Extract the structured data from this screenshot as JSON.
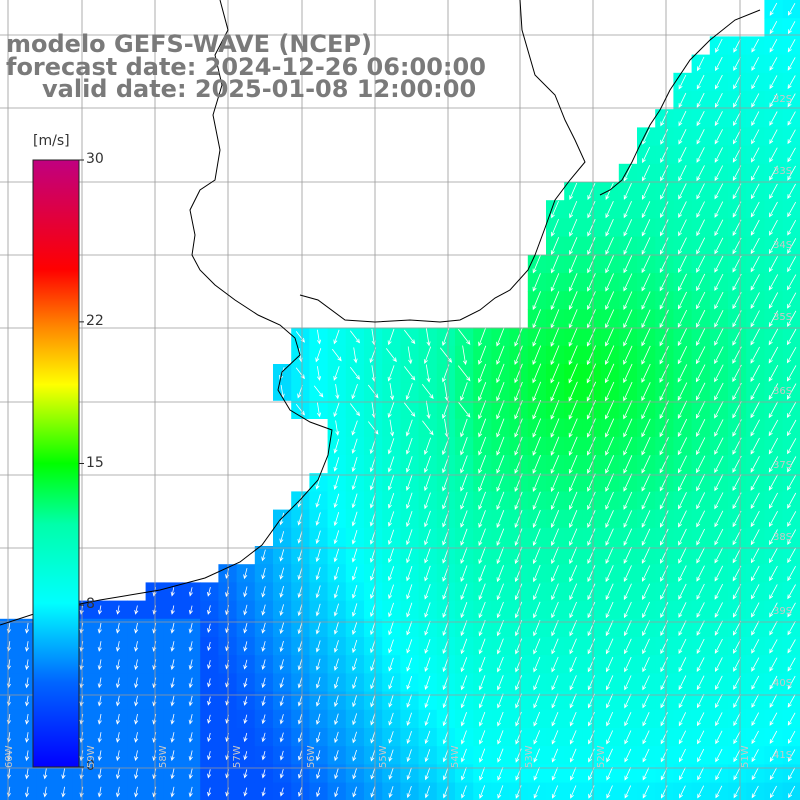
{
  "title": {
    "line1": "modelo GEFS-WAVE (NCEP)",
    "line2": "forecast date: 2024-12-26 06:00:00",
    "line3": "valid date: 2025-01-08 12:00:00"
  },
  "colorbar": {
    "unit": "[m/s]",
    "ticks": [
      {
        "value": 30,
        "label": "30"
      },
      {
        "value": 22,
        "label": "22"
      },
      {
        "value": 15,
        "label": "15"
      },
      {
        "value": 8,
        "label": "8"
      },
      {
        "value": 0,
        "label": "0"
      }
    ],
    "range": [
      0,
      30
    ],
    "colors": [
      "#0000ff",
      "#00aaff",
      "#00ffff",
      "#00ff00",
      "#ffff00",
      "#ff8000",
      "#ff0000",
      "#c00080"
    ]
  },
  "map": {
    "lat_labels": [
      "32S",
      "33S",
      "34S",
      "35S",
      "36S",
      "37S",
      "38S",
      "39S",
      "40S",
      "41S"
    ],
    "lon_labels": [
      "60W",
      "59W",
      "58W",
      "57W",
      "56W",
      "55W",
      "54W",
      "53W",
      "52W",
      "51W"
    ],
    "lat_range": [
      -41.5,
      -30.5
    ],
    "lon_range": [
      -60.5,
      -50.2
    ],
    "grid": true,
    "land_color": "#ffffff",
    "coastline_color": "#000000",
    "arrow_color": "#ffffff",
    "field": "wind speed"
  }
}
